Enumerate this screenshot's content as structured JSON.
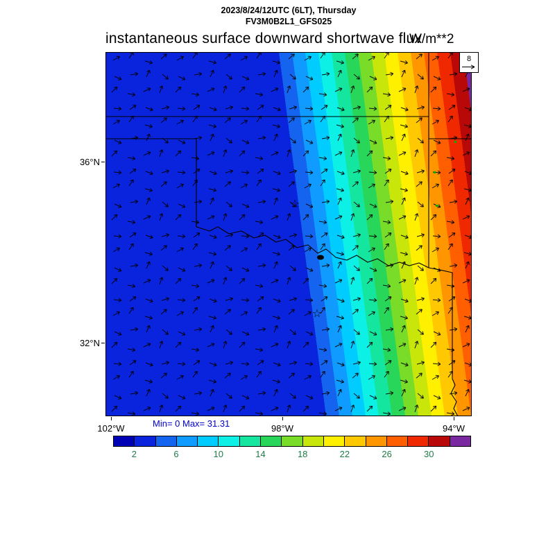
{
  "header": {
    "datetime_line": "2023/8/24/12UTC (6LT), Thursday",
    "model_line": "FV3M0B2L1_GFS025"
  },
  "title": {
    "text": "instantaneous surface downward shortwave flux",
    "units": "W/m**2"
  },
  "axes": {
    "lat_labels": [
      "36°N",
      "32°N"
    ],
    "lon_labels": [
      "102°W",
      "98°W",
      "94°W"
    ]
  },
  "stats": {
    "text": "Min= 0 Max= 31.31",
    "color": "#0000cc"
  },
  "ref_vector": {
    "label": "8"
  },
  "colorbar": {
    "labels": [
      "2",
      "6",
      "10",
      "14",
      "18",
      "22",
      "26",
      "30"
    ],
    "label_color": "#1e7d46",
    "colors": [
      "#0000b4",
      "#0a23dc",
      "#1464f0",
      "#0f9bff",
      "#00ccff",
      "#0cf0e6",
      "#14e6a0",
      "#28d75a",
      "#78dc28",
      "#c8e60a",
      "#fff000",
      "#ffc800",
      "#ff9600",
      "#ff5f00",
      "#f02800",
      "#b80808",
      "#7a28a0"
    ]
  },
  "map": {
    "border_color": "#000000",
    "station_dot_color": "#00b400"
  },
  "chart_data": {
    "type": "heatmap",
    "title": "instantaneous surface downward shortwave flux",
    "units": "W/m**2",
    "valid_time": "2023/8/24/12UTC (6LT), Thursday",
    "model": "FV3M0B2L1_GFS025",
    "min": 0,
    "max": 31.31,
    "contour_interval": 2,
    "colorbar_tick_values": [
      2,
      6,
      10,
      14,
      18,
      22,
      26,
      30
    ],
    "x_ticks": [
      "102°W",
      "98°W",
      "94°W"
    ],
    "y_ticks": [
      "36°N",
      "32°N"
    ],
    "wind_reference_vector": 8,
    "overlay": "wind vector arrows over entire map; state and river boundaries (Oklahoma, Texas Red River region); two star city markers",
    "field_description": "Flux is 0 (solid blue, night side) over the western ~half of the domain; diagonal terminator bands increase eastward through cyan, green, yellow, orange to dark red/purple (>30 W/m**2) along the northeast edge",
    "legend_position": "horizontal colorbar at bottom"
  }
}
